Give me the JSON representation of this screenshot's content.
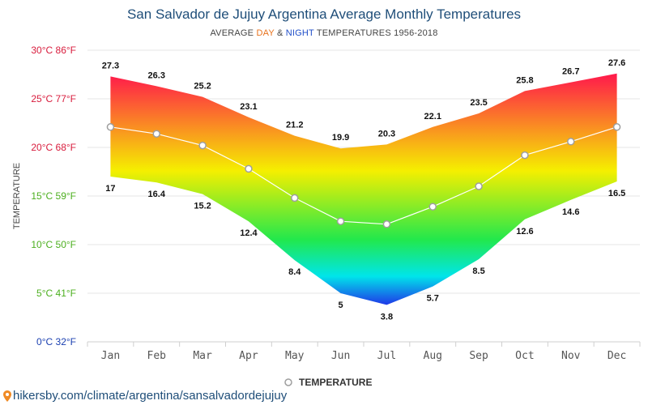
{
  "header": {
    "title": "San Salvador de Jujuy Argentina Average Monthly Temperatures",
    "subtitle_pre": "AVERAGE ",
    "subtitle_day": "DAY",
    "subtitle_amp": " & ",
    "subtitle_night": "NIGHT",
    "subtitle_post": " TEMPERATURES 1956-2018"
  },
  "chart_data": {
    "type": "area",
    "categories": [
      "Jan",
      "Feb",
      "Mar",
      "Apr",
      "May",
      "Jun",
      "Jul",
      "Aug",
      "Sep",
      "Oct",
      "Nov",
      "Dec"
    ],
    "series": [
      {
        "name": "",
        "values": [
          27.3,
          26.3,
          25.2,
          23.1,
          21.2,
          19.9,
          20.3,
          22.1,
          23.5,
          25.8,
          26.7,
          27.6
        ]
      },
      {
        "name": "",
        "values": [
          17,
          16.4,
          15.2,
          12.4,
          8.4,
          5,
          3.8,
          5.7,
          8.5,
          12.6,
          14.6,
          16.5
        ]
      },
      {
        "name": "TEMPERATURE",
        "values": [
          22.1,
          21.4,
          20.2,
          17.8,
          14.8,
          12.4,
          12.1,
          13.9,
          16,
          19.2,
          20.6,
          22.1
        ]
      }
    ],
    "y_ticks": [
      {
        "value": 0,
        "label": "0°C 32°F",
        "color": "#1a3fb0"
      },
      {
        "value": 5,
        "label": "5°C 41°F",
        "color": "#4caf1f"
      },
      {
        "value": 10,
        "label": "10°C 50°F",
        "color": "#4caf1f"
      },
      {
        "value": 15,
        "label": "15°C 59°F",
        "color": "#4caf1f"
      },
      {
        "value": 20,
        "label": "20°C 68°F",
        "color": "#d81b3c"
      },
      {
        "value": 25,
        "label": "25°C 77°F",
        "color": "#d81b3c"
      },
      {
        "value": 30,
        "label": "30°C 86°F",
        "color": "#d81b3c"
      }
    ],
    "ylabel": "TEMPERATURE",
    "xlabel": "",
    "ylim": [
      0,
      30
    ],
    "grid": true,
    "legend_position": "bottom-center"
  },
  "legend": {
    "label": "TEMPERATURE"
  },
  "footer": {
    "text": "hikersby.com/climate/argentina/sansalvadordejujuy"
  },
  "colors": {
    "title": "#1f4e79",
    "day_accent": "#e8721c",
    "night_accent": "#1f4ec8",
    "gradient_top": "#ff1a4b",
    "gradient_mid": "#f5ef00",
    "gradient_green": "#22e84c",
    "gradient_cyan": "#00e5ea",
    "gradient_bottom": "#1e3fe8",
    "line": "#ffffff",
    "marker_stroke": "#9e9e9e"
  }
}
